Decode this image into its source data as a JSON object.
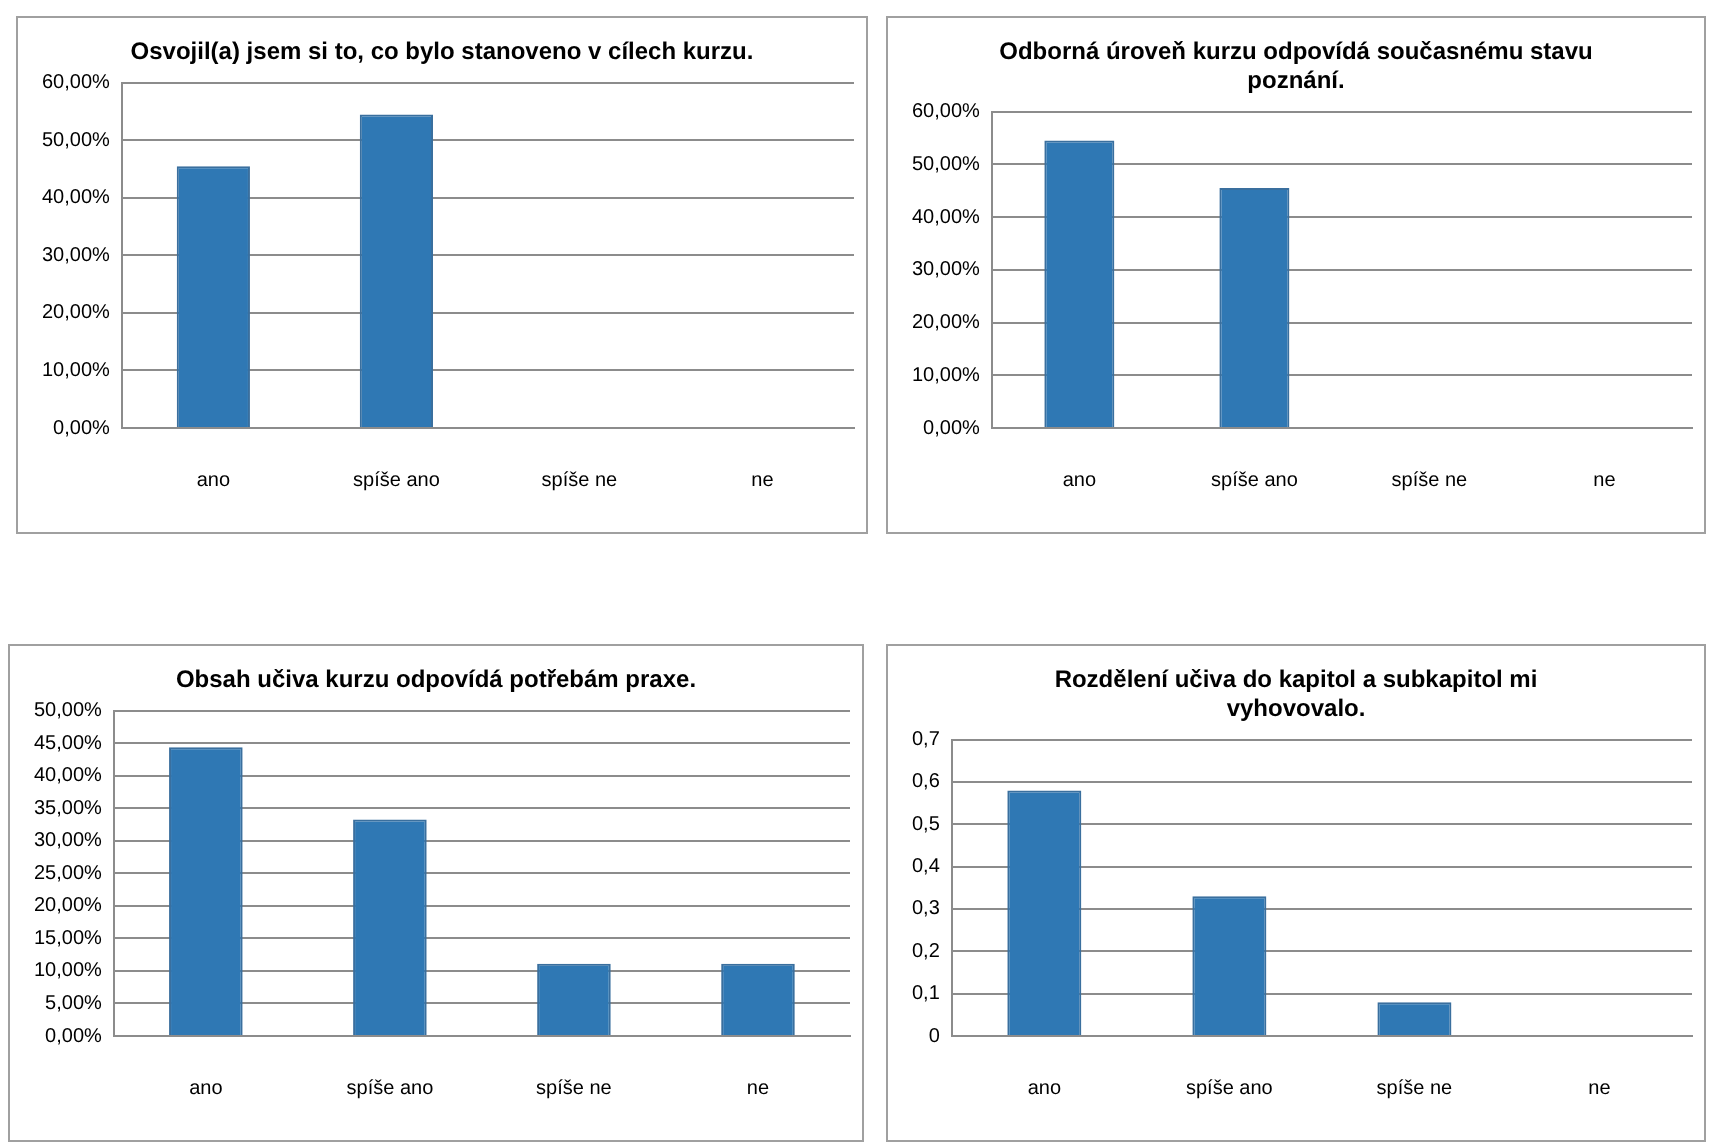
{
  "chart_data": [
    {
      "type": "bar",
      "title": "Osvojil(a) jsem si to, co bylo stanoveno v cílech kurzu.",
      "categories": [
        "ano",
        "spíše ano",
        "spíše ne",
        "ne"
      ],
      "values": [
        45.5,
        54.5,
        0,
        0
      ],
      "color": "#2f78b4",
      "ylim": [
        0,
        60
      ],
      "yticks": [
        {
          "value": 0,
          "label": "0,00%"
        },
        {
          "value": 10,
          "label": "10,00%"
        },
        {
          "value": 20,
          "label": "20,00%"
        },
        {
          "value": 30,
          "label": "30,00%"
        },
        {
          "value": 40,
          "label": "40,00%"
        },
        {
          "value": 50,
          "label": "50,00%"
        },
        {
          "value": 60,
          "label": "60,00%"
        }
      ],
      "grid": "y",
      "legend": false
    },
    {
      "type": "bar",
      "title": "Odborná úroveň kurzu odpovídá současnému stavu poznání.",
      "categories": [
        "ano",
        "spíše ano",
        "spíše ne",
        "ne"
      ],
      "values": [
        54.5,
        45.5,
        0,
        0
      ],
      "color": "#2f78b4",
      "ylim": [
        0,
        60
      ],
      "yticks": [
        {
          "value": 0,
          "label": "0,00%"
        },
        {
          "value": 10,
          "label": "10,00%"
        },
        {
          "value": 20,
          "label": "20,00%"
        },
        {
          "value": 30,
          "label": "30,00%"
        },
        {
          "value": 40,
          "label": "40,00%"
        },
        {
          "value": 50,
          "label": "50,00%"
        },
        {
          "value": 60,
          "label": "60,00%"
        }
      ],
      "grid": "y",
      "legend": false
    },
    {
      "type": "bar",
      "title": "Obsah učiva kurzu odpovídá potřebám praxe.",
      "categories": [
        "ano",
        "spíše ano",
        "spíše ne",
        "ne"
      ],
      "values": [
        44.4,
        33.3,
        11.1,
        11.1
      ],
      "color": "#2f78b4",
      "ylim": [
        0,
        50
      ],
      "yticks": [
        {
          "value": 0,
          "label": "0,00%"
        },
        {
          "value": 5,
          "label": "5,00%"
        },
        {
          "value": 10,
          "label": "10,00%"
        },
        {
          "value": 15,
          "label": "15,00%"
        },
        {
          "value": 20,
          "label": "20,00%"
        },
        {
          "value": 25,
          "label": "25,00%"
        },
        {
          "value": 30,
          "label": "30,00%"
        },
        {
          "value": 35,
          "label": "35,00%"
        },
        {
          "value": 40,
          "label": "40,00%"
        },
        {
          "value": 45,
          "label": "45,00%"
        },
        {
          "value": 50,
          "label": "50,00%"
        }
      ],
      "grid": "y",
      "legend": false
    },
    {
      "type": "bar",
      "title": "Rozdělení učiva do kapitol a subkapitol mi vyhovovalo.",
      "categories": [
        "ano",
        "spíše ano",
        "spíše ne",
        "ne"
      ],
      "values": [
        0.58,
        0.33,
        0.08,
        0
      ],
      "color": "#2f78b4",
      "ylim": [
        0,
        0.7
      ],
      "yticks": [
        0,
        {
          "value": 0.1,
          "label": "0,1"
        },
        {
          "value": 0.2,
          "label": "0,2"
        },
        {
          "value": 0.3,
          "label": "0,3"
        },
        {
          "value": 0.4,
          "label": "0,4"
        },
        {
          "value": 0.5,
          "label": "0,5"
        },
        {
          "value": 0.6,
          "label": "0,6"
        },
        {
          "value": 0.7,
          "label": "0,7"
        }
      ],
      "grid": "y",
      "legend": false
    }
  ]
}
